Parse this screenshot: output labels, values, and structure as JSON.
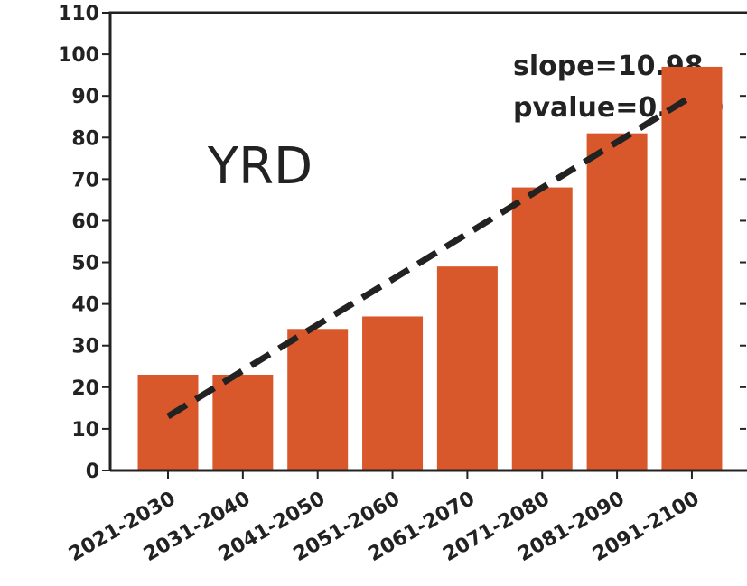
{
  "chart_data": {
    "type": "bar",
    "categories": [
      "2021-2030",
      "2031-2040",
      "2041-2050",
      "2051-2060",
      "2061-2070",
      "2071-2080",
      "2081-2090",
      "2091-2100"
    ],
    "values": [
      23,
      23,
      34,
      37,
      49,
      68,
      81,
      97
    ],
    "color": "#d9582b",
    "trend": {
      "color": "#222222",
      "values": [
        13.0,
        24.0,
        35.0,
        45.9,
        56.9,
        67.9,
        78.9,
        89.9
      ]
    },
    "region_label": "YRD",
    "annotations": [
      "slope=10.98",
      "pvalue=0.000"
    ],
    "ylim": [
      0,
      110
    ],
    "yticks": [
      0,
      10,
      20,
      30,
      40,
      50,
      60,
      70,
      80,
      90,
      100,
      110
    ]
  }
}
